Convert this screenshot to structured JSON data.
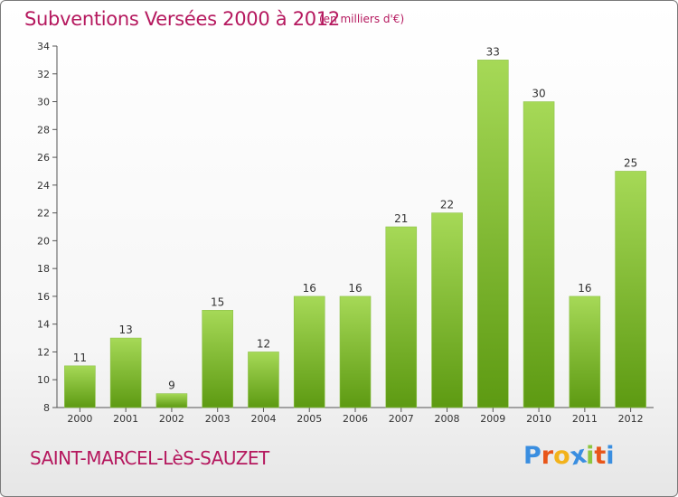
{
  "header": {
    "title": "Subventions Versées 2000 à 2012",
    "subtitle": "(en milliers d'€)"
  },
  "footer": {
    "place": "SAINT-MARCEL-LèS-SAUZET",
    "logo_text": "Proxiti"
  },
  "colors": {
    "title": "#b5185e",
    "bar_light": "#a6d957",
    "bar_dark": "#5d9a12",
    "logo_letters": [
      "#3a8ee0",
      "#e8561a",
      "#f2b21b",
      "#3a8ee0",
      "#8cc63f",
      "#e8561a",
      "#3a8ee0"
    ]
  },
  "chart_data": {
    "type": "bar",
    "categories": [
      "2000",
      "2001",
      "2002",
      "2003",
      "2004",
      "2005",
      "2006",
      "2007",
      "2008",
      "2009",
      "2010",
      "2011",
      "2012"
    ],
    "values": [
      11,
      13,
      9,
      15,
      12,
      16,
      16,
      21,
      22,
      33,
      30,
      16,
      25
    ],
    "ylim": [
      8,
      34
    ],
    "yticks": [
      8,
      10,
      12,
      14,
      16,
      18,
      20,
      22,
      24,
      26,
      28,
      30,
      32,
      34
    ],
    "grid": false,
    "legend": "none"
  }
}
